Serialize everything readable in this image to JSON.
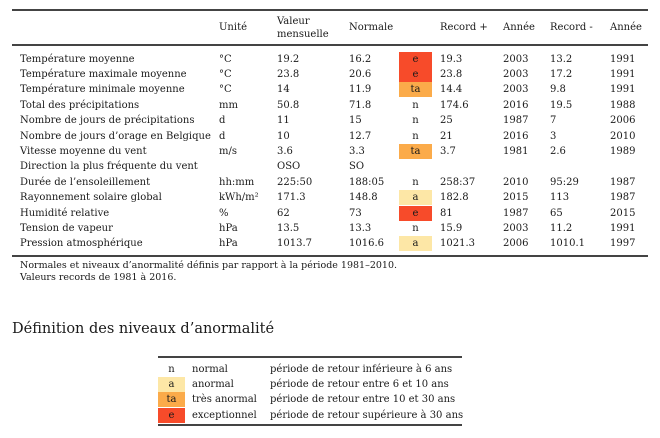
{
  "table": {
    "headers": {
      "label": "",
      "unit": "Unité",
      "value_line1": "Valeur",
      "value_line2": "mensuelle",
      "normal": "Normale",
      "record_plus": "Record +",
      "year_plus": "Année",
      "record_minus": "Record -",
      "year_minus": "Année"
    },
    "rows": [
      {
        "label": "Température moyenne",
        "unit": "°C",
        "value": "19.2",
        "normal": "16.2",
        "level": "e",
        "record_plus": "19.3",
        "year_plus": "2003",
        "record_minus": "13.2",
        "year_minus": "1991"
      },
      {
        "label": "Température maximale moyenne",
        "unit": "°C",
        "value": "23.8",
        "normal": "20.6",
        "level": "e",
        "record_plus": "23.8",
        "year_plus": "2003",
        "record_minus": "17.2",
        "year_minus": "1991"
      },
      {
        "label": "Température minimale moyenne",
        "unit": "°C",
        "value": "14",
        "normal": "11.9",
        "level": "ta",
        "record_plus": "14.4",
        "year_plus": "2003",
        "record_minus": "9.8",
        "year_minus": "1991"
      },
      {
        "label": "Total des précipitations",
        "unit": "mm",
        "value": "50.8",
        "normal": "71.8",
        "level": "n",
        "record_plus": "174.6",
        "year_plus": "2016",
        "record_minus": "19.5",
        "year_minus": "1988"
      },
      {
        "label": "Nombre de jours de précipitations",
        "unit": "d",
        "value": "11",
        "normal": "15",
        "level": "n",
        "record_plus": "25",
        "year_plus": "1987",
        "record_minus": "7",
        "year_minus": "2006"
      },
      {
        "label": "Nombre de jours d’orage en Belgique",
        "unit": "d",
        "value": "10",
        "normal": "12.7",
        "level": "n",
        "record_plus": "21",
        "year_plus": "2016",
        "record_minus": "3",
        "year_minus": "2010"
      },
      {
        "label": "Vitesse moyenne du vent",
        "unit": "m/s",
        "value": "3.6",
        "normal": "3.3",
        "level": "ta",
        "record_plus": "3.7",
        "year_plus": "1981",
        "record_minus": "2.6",
        "year_minus": "1989"
      },
      {
        "label": "Direction la plus fréquente du vent",
        "unit": "",
        "value": "OSO",
        "normal": "SO",
        "level": "",
        "record_plus": "",
        "year_plus": "",
        "record_minus": "",
        "year_minus": ""
      },
      {
        "label": "Durée de l’ensoleillement",
        "unit": "hh:mm",
        "value": "225:50",
        "normal": "188:05",
        "level": "n",
        "record_plus": "258:37",
        "year_plus": "2010",
        "record_minus": "95:29",
        "year_minus": "1987"
      },
      {
        "label": "Rayonnement solaire global",
        "unit": "kWh/m²",
        "value": "171.3",
        "normal": "148.8",
        "level": "a",
        "record_plus": "182.8",
        "year_plus": "2015",
        "record_minus": "113",
        "year_minus": "1987"
      },
      {
        "label": "Humidité relative",
        "unit": "%",
        "value": "62",
        "normal": "73",
        "level": "e",
        "record_plus": "81",
        "year_plus": "1987",
        "record_minus": "65",
        "year_minus": "2015"
      },
      {
        "label": "Tension de vapeur",
        "unit": "hPa",
        "value": "13.5",
        "normal": "13.3",
        "level": "n",
        "record_plus": "15.9",
        "year_plus": "2003",
        "record_minus": "11.2",
        "year_minus": "1991"
      },
      {
        "label": "Pression atmosphérique",
        "unit": "hPa",
        "value": "1013.7",
        "normal": "1016.6",
        "level": "a",
        "record_plus": "1021.3",
        "year_plus": "2006",
        "record_minus": "1010.1",
        "year_minus": "1997"
      }
    ]
  },
  "notes": {
    "line1": "Normales et niveaux d’anormalité définis par rapport à la période 1981–2010.",
    "line2": "Valeurs records de 1981 à 2016."
  },
  "legend": {
    "title": "Définition des niveaux d’anormalité",
    "items": [
      {
        "code": "n",
        "name": "normal",
        "description": "période de retour inférieure à 6 ans"
      },
      {
        "code": "a",
        "name": "anormal",
        "description": "période de retour entre 6 et 10 ans"
      },
      {
        "code": "ta",
        "name": "très anormal",
        "description": "période de retour entre 10 et 30 ans"
      },
      {
        "code": "e",
        "name": "exceptionnel",
        "description": "période de retour supérieure à 30 ans"
      }
    ]
  },
  "colors": {
    "n": "#ffffff",
    "a": "#fde7a6",
    "ta": "#fbab4a",
    "e": "#f74b2a",
    "rule": "#444444"
  }
}
